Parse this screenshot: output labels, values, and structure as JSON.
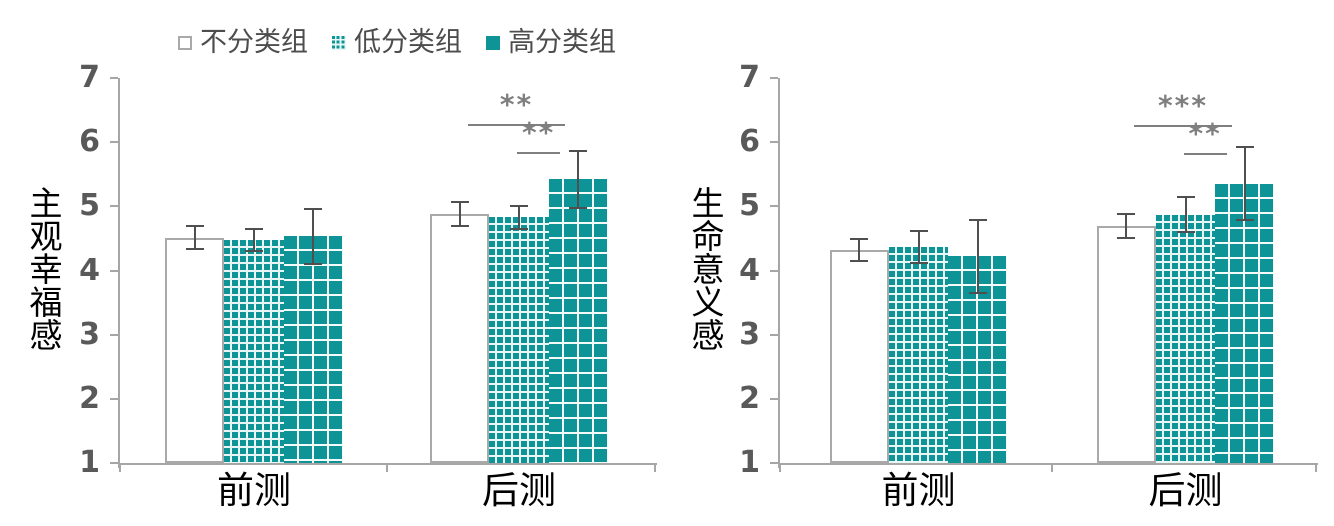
{
  "colors": {
    "teal": "#0E9496",
    "fine_grid_line": "#E9F6F6",
    "large_grid_line": "#F3FBFB",
    "axis": "#A6A6A6",
    "tick_text": "#595959",
    "error_bar": "#4F4F4F",
    "significance": "#7F7F7F",
    "white_bar_border": "#A9A9A9"
  },
  "legend": {
    "items": [
      {
        "label": "不分类组",
        "swatch": "white"
      },
      {
        "label": "低分类组",
        "swatch": "fine-grid"
      },
      {
        "label": "高分类组",
        "swatch": "solid"
      }
    ]
  },
  "chart_data": [
    {
      "type": "bar",
      "title": "",
      "ylabel": "主观幸福感",
      "xlabel": "",
      "categories": [
        "前测",
        "后测"
      ],
      "ylim": [
        1,
        7
      ],
      "yticks": [
        7,
        6,
        5,
        4,
        3,
        2,
        1
      ],
      "grid": false,
      "legend_position": "top",
      "series": [
        {
          "name": "不分类组",
          "pattern": "white",
          "values": [
            4.51,
            4.88
          ],
          "errors": [
            0.18,
            0.18
          ]
        },
        {
          "name": "低分类组",
          "pattern": "fine-grid",
          "values": [
            4.48,
            4.83
          ],
          "errors": [
            0.17,
            0.18
          ]
        },
        {
          "name": "高分类组",
          "pattern": "large-grid",
          "values": [
            4.53,
            5.42
          ],
          "errors": [
            0.43,
            0.44
          ]
        }
      ],
      "significance": [
        {
          "label": "**",
          "category_index": 1,
          "between_series": [
            0,
            2
          ],
          "line_value": 6.28
        },
        {
          "label": "**",
          "category_index": 1,
          "between_series": [
            1,
            2
          ],
          "line_value": 5.84
        }
      ]
    },
    {
      "type": "bar",
      "title": "",
      "ylabel": "生命意义感",
      "xlabel": "",
      "categories": [
        "前测",
        "后测"
      ],
      "ylim": [
        1,
        7
      ],
      "yticks": [
        7,
        6,
        5,
        4,
        3,
        2,
        1
      ],
      "grid": false,
      "legend_position": "top",
      "series": [
        {
          "name": "不分类组",
          "pattern": "white",
          "values": [
            4.32,
            4.69
          ],
          "errors": [
            0.17,
            0.19
          ]
        },
        {
          "name": "低分类组",
          "pattern": "fine-grid",
          "values": [
            4.36,
            4.87
          ],
          "errors": [
            0.25,
            0.27
          ]
        },
        {
          "name": "高分类组",
          "pattern": "large-grid",
          "values": [
            4.22,
            5.35
          ],
          "errors": [
            0.57,
            0.57
          ]
        }
      ],
      "significance": [
        {
          "label": "***",
          "category_index": 1,
          "between_series": [
            0,
            2
          ],
          "line_value": 6.26
        },
        {
          "label": "**",
          "category_index": 1,
          "between_series": [
            1,
            2
          ],
          "line_value": 5.83
        }
      ]
    }
  ]
}
